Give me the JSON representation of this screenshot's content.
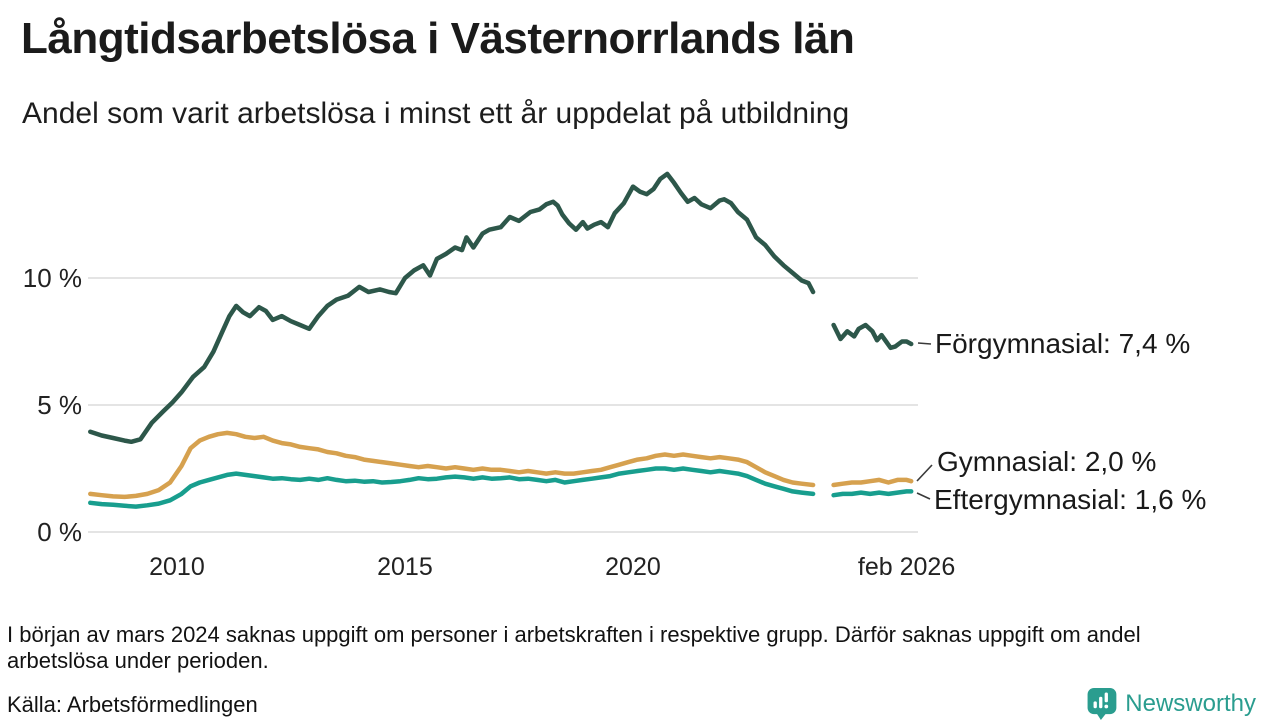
{
  "header": {
    "title": "Långtidsarbetslösa i Västernorrlands län",
    "subtitle": "Andel som varit arbetslösa i minst ett år uppdelat på utbildning"
  },
  "chart_data": {
    "type": "line",
    "title": "Långtidsarbetslösa i Västernorrlands län",
    "subtitle": "Andel som varit arbetslösa i minst ett år uppdelat på utbildning",
    "xlabel": "",
    "ylabel": "%",
    "grid": true,
    "legend_position": "right-end-labels",
    "xlim": [
      2008.05,
      2026.25
    ],
    "ylim": [
      0,
      15
    ],
    "x_axis": {
      "ticks": [
        {
          "value": 2010,
          "label": "2010"
        },
        {
          "value": 2015,
          "label": "2015"
        },
        {
          "value": 2020,
          "label": "2020"
        },
        {
          "value": 2026.0,
          "label": "feb 2026"
        }
      ]
    },
    "y_axis": {
      "range": [
        0,
        15
      ],
      "ticks": [
        {
          "value": 0,
          "label": "0 %"
        },
        {
          "value": 5,
          "label": "5 %"
        },
        {
          "value": 10,
          "label": "10 %"
        }
      ]
    },
    "data_gap": {
      "from": 2024.05,
      "to": 2024.35
    },
    "series": [
      {
        "name": "Förgymnasial",
        "end_value": "7,4 %",
        "end_label": "Förgymnasial: 7,4 %",
        "color": "#2d574a",
        "points": [
          [
            2008.1,
            3.95
          ],
          [
            2008.35,
            3.8
          ],
          [
            2008.6,
            3.7
          ],
          [
            2008.85,
            3.6
          ],
          [
            2009.0,
            3.55
          ],
          [
            2009.2,
            3.65
          ],
          [
            2009.45,
            4.3
          ],
          [
            2009.7,
            4.75
          ],
          [
            2009.9,
            5.1
          ],
          [
            2010.1,
            5.5
          ],
          [
            2010.35,
            6.1
          ],
          [
            2010.6,
            6.5
          ],
          [
            2010.8,
            7.1
          ],
          [
            2011.0,
            7.9
          ],
          [
            2011.15,
            8.5
          ],
          [
            2011.3,
            8.9
          ],
          [
            2011.45,
            8.65
          ],
          [
            2011.6,
            8.5
          ],
          [
            2011.8,
            8.85
          ],
          [
            2011.95,
            8.7
          ],
          [
            2012.1,
            8.35
          ],
          [
            2012.3,
            8.5
          ],
          [
            2012.5,
            8.3
          ],
          [
            2012.7,
            8.15
          ],
          [
            2012.9,
            8.0
          ],
          [
            2013.1,
            8.5
          ],
          [
            2013.3,
            8.9
          ],
          [
            2013.5,
            9.15
          ],
          [
            2013.75,
            9.3
          ],
          [
            2014.0,
            9.65
          ],
          [
            2014.2,
            9.45
          ],
          [
            2014.45,
            9.55
          ],
          [
            2014.65,
            9.45
          ],
          [
            2014.8,
            9.4
          ],
          [
            2015.0,
            10.0
          ],
          [
            2015.2,
            10.3
          ],
          [
            2015.4,
            10.5
          ],
          [
            2015.55,
            10.1
          ],
          [
            2015.7,
            10.75
          ],
          [
            2015.9,
            10.95
          ],
          [
            2016.1,
            11.2
          ],
          [
            2016.25,
            11.1
          ],
          [
            2016.35,
            11.6
          ],
          [
            2016.5,
            11.2
          ],
          [
            2016.7,
            11.75
          ],
          [
            2016.85,
            11.9
          ],
          [
            2017.1,
            12.0
          ],
          [
            2017.3,
            12.4
          ],
          [
            2017.5,
            12.25
          ],
          [
            2017.75,
            12.6
          ],
          [
            2017.95,
            12.7
          ],
          [
            2018.1,
            12.9
          ],
          [
            2018.25,
            13.0
          ],
          [
            2018.35,
            12.85
          ],
          [
            2018.45,
            12.5
          ],
          [
            2018.6,
            12.15
          ],
          [
            2018.75,
            11.9
          ],
          [
            2018.9,
            12.2
          ],
          [
            2019.0,
            11.95
          ],
          [
            2019.15,
            12.1
          ],
          [
            2019.3,
            12.2
          ],
          [
            2019.45,
            12.0
          ],
          [
            2019.6,
            12.55
          ],
          [
            2019.8,
            12.95
          ],
          [
            2020.0,
            13.6
          ],
          [
            2020.15,
            13.4
          ],
          [
            2020.3,
            13.3
          ],
          [
            2020.45,
            13.5
          ],
          [
            2020.6,
            13.9
          ],
          [
            2020.75,
            14.1
          ],
          [
            2020.9,
            13.75
          ],
          [
            2021.05,
            13.35
          ],
          [
            2021.2,
            13.0
          ],
          [
            2021.35,
            13.15
          ],
          [
            2021.5,
            12.9
          ],
          [
            2021.7,
            12.75
          ],
          [
            2021.9,
            13.05
          ],
          [
            2022.0,
            13.1
          ],
          [
            2022.15,
            12.95
          ],
          [
            2022.3,
            12.6
          ],
          [
            2022.5,
            12.3
          ],
          [
            2022.7,
            11.6
          ],
          [
            2022.9,
            11.3
          ],
          [
            2023.1,
            10.85
          ],
          [
            2023.3,
            10.5
          ],
          [
            2023.5,
            10.2
          ],
          [
            2023.7,
            9.9
          ],
          [
            2023.85,
            9.8
          ],
          [
            2023.95,
            9.45
          ],
          [
            2024.4,
            8.15
          ],
          [
            2024.55,
            7.6
          ],
          [
            2024.7,
            7.9
          ],
          [
            2024.85,
            7.7
          ],
          [
            2024.95,
            8.0
          ],
          [
            2025.1,
            8.15
          ],
          [
            2025.25,
            7.9
          ],
          [
            2025.35,
            7.55
          ],
          [
            2025.45,
            7.75
          ],
          [
            2025.55,
            7.5
          ],
          [
            2025.65,
            7.25
          ],
          [
            2025.75,
            7.3
          ],
          [
            2025.9,
            7.5
          ],
          [
            2026.0,
            7.5
          ],
          [
            2026.1,
            7.4
          ]
        ]
      },
      {
        "name": "Gymnasial",
        "end_value": "2,0 %",
        "end_label": "Gymnasial: 2,0 %",
        "color": "#d6a14f",
        "points": [
          [
            2008.1,
            1.5
          ],
          [
            2008.35,
            1.45
          ],
          [
            2008.6,
            1.4
          ],
          [
            2008.85,
            1.38
          ],
          [
            2009.1,
            1.42
          ],
          [
            2009.35,
            1.5
          ],
          [
            2009.6,
            1.65
          ],
          [
            2009.85,
            1.95
          ],
          [
            2010.1,
            2.6
          ],
          [
            2010.3,
            3.3
          ],
          [
            2010.5,
            3.6
          ],
          [
            2010.7,
            3.75
          ],
          [
            2010.9,
            3.85
          ],
          [
            2011.1,
            3.9
          ],
          [
            2011.3,
            3.85
          ],
          [
            2011.5,
            3.75
          ],
          [
            2011.7,
            3.7
          ],
          [
            2011.9,
            3.75
          ],
          [
            2012.1,
            3.6
          ],
          [
            2012.3,
            3.5
          ],
          [
            2012.5,
            3.45
          ],
          [
            2012.7,
            3.35
          ],
          [
            2012.9,
            3.3
          ],
          [
            2013.1,
            3.25
          ],
          [
            2013.3,
            3.15
          ],
          [
            2013.5,
            3.1
          ],
          [
            2013.7,
            3.0
          ],
          [
            2013.9,
            2.95
          ],
          [
            2014.1,
            2.85
          ],
          [
            2014.3,
            2.8
          ],
          [
            2014.5,
            2.75
          ],
          [
            2014.7,
            2.7
          ],
          [
            2014.9,
            2.65
          ],
          [
            2015.1,
            2.6
          ],
          [
            2015.3,
            2.55
          ],
          [
            2015.5,
            2.6
          ],
          [
            2015.7,
            2.55
          ],
          [
            2015.9,
            2.5
          ],
          [
            2016.1,
            2.55
          ],
          [
            2016.3,
            2.5
          ],
          [
            2016.5,
            2.45
          ],
          [
            2016.7,
            2.5
          ],
          [
            2016.9,
            2.45
          ],
          [
            2017.1,
            2.45
          ],
          [
            2017.3,
            2.4
          ],
          [
            2017.5,
            2.35
          ],
          [
            2017.7,
            2.4
          ],
          [
            2017.9,
            2.35
          ],
          [
            2018.1,
            2.3
          ],
          [
            2018.3,
            2.35
          ],
          [
            2018.5,
            2.3
          ],
          [
            2018.7,
            2.3
          ],
          [
            2018.9,
            2.35
          ],
          [
            2019.1,
            2.4
          ],
          [
            2019.3,
            2.45
          ],
          [
            2019.5,
            2.55
          ],
          [
            2019.7,
            2.65
          ],
          [
            2019.9,
            2.75
          ],
          [
            2020.1,
            2.85
          ],
          [
            2020.3,
            2.9
          ],
          [
            2020.5,
            3.0
          ],
          [
            2020.7,
            3.05
          ],
          [
            2020.9,
            3.0
          ],
          [
            2021.1,
            3.05
          ],
          [
            2021.3,
            3.0
          ],
          [
            2021.5,
            2.95
          ],
          [
            2021.7,
            2.9
          ],
          [
            2021.9,
            2.95
          ],
          [
            2022.1,
            2.9
          ],
          [
            2022.3,
            2.85
          ],
          [
            2022.5,
            2.75
          ],
          [
            2022.7,
            2.55
          ],
          [
            2022.9,
            2.35
          ],
          [
            2023.1,
            2.2
          ],
          [
            2023.3,
            2.05
          ],
          [
            2023.5,
            1.95
          ],
          [
            2023.7,
            1.9
          ],
          [
            2023.95,
            1.85
          ],
          [
            2024.4,
            1.85
          ],
          [
            2024.6,
            1.9
          ],
          [
            2024.8,
            1.95
          ],
          [
            2025.0,
            1.95
          ],
          [
            2025.2,
            2.0
          ],
          [
            2025.4,
            2.05
          ],
          [
            2025.6,
            1.95
          ],
          [
            2025.8,
            2.05
          ],
          [
            2026.0,
            2.05
          ],
          [
            2026.1,
            2.0
          ]
        ]
      },
      {
        "name": "Eftergymnasial",
        "end_value": "1,6 %",
        "end_label": "Eftergymnasial: 1,6 %",
        "color": "#189e8e",
        "points": [
          [
            2008.1,
            1.15
          ],
          [
            2008.35,
            1.1
          ],
          [
            2008.6,
            1.07
          ],
          [
            2008.85,
            1.03
          ],
          [
            2009.1,
            1.0
          ],
          [
            2009.35,
            1.05
          ],
          [
            2009.6,
            1.12
          ],
          [
            2009.85,
            1.25
          ],
          [
            2010.1,
            1.5
          ],
          [
            2010.3,
            1.8
          ],
          [
            2010.5,
            1.95
          ],
          [
            2010.7,
            2.05
          ],
          [
            2010.9,
            2.15
          ],
          [
            2011.1,
            2.25
          ],
          [
            2011.3,
            2.3
          ],
          [
            2011.5,
            2.25
          ],
          [
            2011.7,
            2.2
          ],
          [
            2011.9,
            2.15
          ],
          [
            2012.1,
            2.1
          ],
          [
            2012.3,
            2.12
          ],
          [
            2012.5,
            2.08
          ],
          [
            2012.7,
            2.05
          ],
          [
            2012.9,
            2.1
          ],
          [
            2013.1,
            2.05
          ],
          [
            2013.3,
            2.12
          ],
          [
            2013.5,
            2.05
          ],
          [
            2013.7,
            2.0
          ],
          [
            2013.9,
            2.02
          ],
          [
            2014.1,
            1.98
          ],
          [
            2014.3,
            2.0
          ],
          [
            2014.5,
            1.95
          ],
          [
            2014.7,
            1.97
          ],
          [
            2014.9,
            2.0
          ],
          [
            2015.1,
            2.05
          ],
          [
            2015.3,
            2.12
          ],
          [
            2015.5,
            2.08
          ],
          [
            2015.7,
            2.1
          ],
          [
            2015.9,
            2.15
          ],
          [
            2016.1,
            2.18
          ],
          [
            2016.3,
            2.15
          ],
          [
            2016.5,
            2.1
          ],
          [
            2016.7,
            2.15
          ],
          [
            2016.9,
            2.1
          ],
          [
            2017.1,
            2.12
          ],
          [
            2017.3,
            2.15
          ],
          [
            2017.5,
            2.08
          ],
          [
            2017.7,
            2.1
          ],
          [
            2017.9,
            2.05
          ],
          [
            2018.1,
            2.0
          ],
          [
            2018.3,
            2.05
          ],
          [
            2018.5,
            1.95
          ],
          [
            2018.7,
            2.0
          ],
          [
            2018.9,
            2.05
          ],
          [
            2019.1,
            2.1
          ],
          [
            2019.3,
            2.15
          ],
          [
            2019.5,
            2.2
          ],
          [
            2019.7,
            2.3
          ],
          [
            2019.9,
            2.35
          ],
          [
            2020.1,
            2.4
          ],
          [
            2020.3,
            2.45
          ],
          [
            2020.5,
            2.5
          ],
          [
            2020.7,
            2.5
          ],
          [
            2020.9,
            2.45
          ],
          [
            2021.1,
            2.5
          ],
          [
            2021.3,
            2.45
          ],
          [
            2021.5,
            2.4
          ],
          [
            2021.7,
            2.35
          ],
          [
            2021.9,
            2.4
          ],
          [
            2022.1,
            2.35
          ],
          [
            2022.3,
            2.3
          ],
          [
            2022.5,
            2.2
          ],
          [
            2022.7,
            2.05
          ],
          [
            2022.9,
            1.9
          ],
          [
            2023.1,
            1.8
          ],
          [
            2023.3,
            1.7
          ],
          [
            2023.5,
            1.6
          ],
          [
            2023.7,
            1.55
          ],
          [
            2023.95,
            1.5
          ],
          [
            2024.4,
            1.45
          ],
          [
            2024.6,
            1.5
          ],
          [
            2024.8,
            1.5
          ],
          [
            2025.0,
            1.55
          ],
          [
            2025.2,
            1.5
          ],
          [
            2025.4,
            1.55
          ],
          [
            2025.6,
            1.5
          ],
          [
            2025.8,
            1.55
          ],
          [
            2026.0,
            1.6
          ],
          [
            2026.1,
            1.6
          ]
        ]
      }
    ]
  },
  "footer": {
    "note": "I början av mars 2024 saknas uppgift om personer i arbetskraften i respektive grupp. Därför saknas uppgift om andel arbetslösa under perioden.",
    "source": "Källa: Arbetsförmedlingen"
  },
  "logo": {
    "text": "Newsworthy",
    "color": "#2a9d8f",
    "icon": "bar-chart-speech-bubble-icon"
  }
}
